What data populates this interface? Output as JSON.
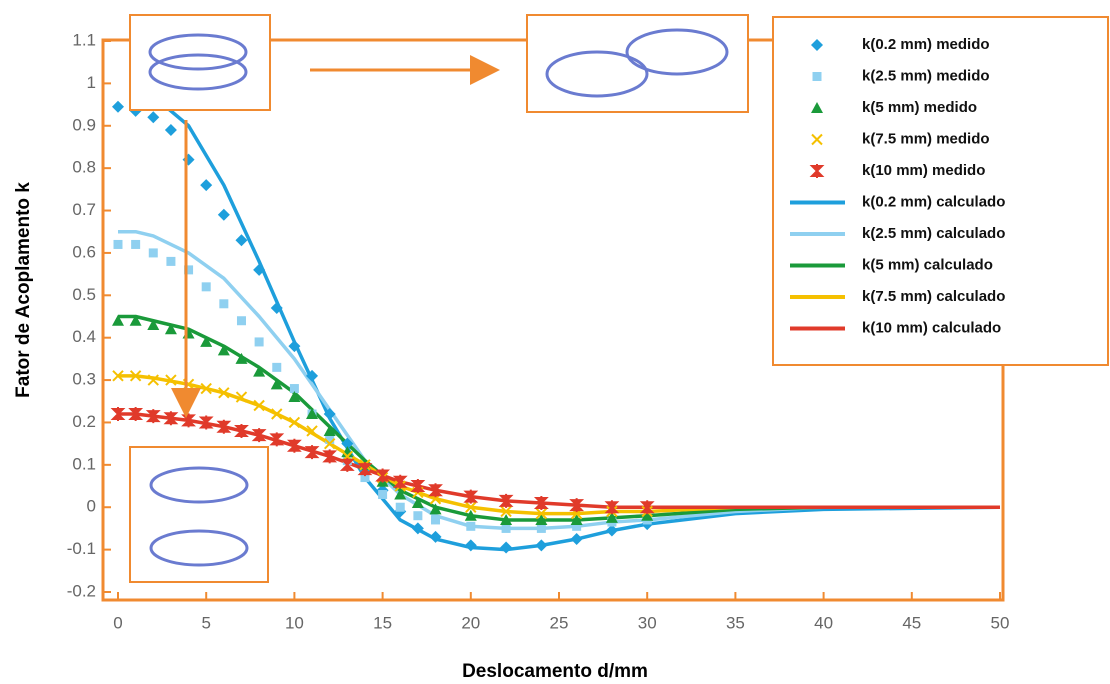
{
  "chart_data": {
    "type": "line",
    "xlabel": "Deslocamento d/mm",
    "ylabel": "Fator de Acoplamento k",
    "xlim": [
      0,
      50
    ],
    "ylim": [
      -0.2,
      1.1
    ],
    "xticks": [
      0,
      5,
      10,
      15,
      20,
      25,
      30,
      35,
      40,
      45,
      50
    ],
    "yticks": [
      1.1,
      1,
      0.9,
      0.8,
      0.7,
      0.6,
      0.5,
      0.4,
      0.3,
      0.2,
      0.1,
      0,
      -0.1,
      -0.2
    ],
    "series": [
      {
        "name": "k(0.2 mm) medido",
        "style": "marker",
        "marker": "diamond",
        "color": "#1e9fdc",
        "x": [
          0,
          1,
          2,
          3,
          4,
          5,
          6,
          7,
          8,
          9,
          10,
          11,
          12,
          13,
          14,
          15,
          16,
          17,
          18,
          20,
          22,
          24,
          26,
          28,
          30
        ],
        "values": [
          0.945,
          0.935,
          0.92,
          0.89,
          0.82,
          0.76,
          0.69,
          0.63,
          0.56,
          0.47,
          0.38,
          0.31,
          0.22,
          0.15,
          0.09,
          0.04,
          -0.01,
          -0.05,
          -0.07,
          -0.09,
          -0.095,
          -0.09,
          -0.075,
          -0.055,
          -0.04
        ]
      },
      {
        "name": "k(2.5 mm) medido",
        "style": "marker",
        "marker": "square",
        "color": "#8fd0f0",
        "x": [
          0,
          1,
          2,
          3,
          4,
          5,
          6,
          7,
          8,
          9,
          10,
          11,
          12,
          13,
          14,
          15,
          16,
          17,
          18,
          20,
          22,
          24,
          26,
          28,
          30
        ],
        "values": [
          0.62,
          0.62,
          0.6,
          0.58,
          0.56,
          0.52,
          0.48,
          0.44,
          0.39,
          0.33,
          0.28,
          0.22,
          0.16,
          0.11,
          0.07,
          0.03,
          0.0,
          -0.02,
          -0.03,
          -0.045,
          -0.05,
          -0.05,
          -0.045,
          -0.035,
          -0.03
        ]
      },
      {
        "name": "k(5 mm) medido",
        "style": "marker",
        "marker": "triangle",
        "color": "#1a9a3a",
        "x": [
          0,
          1,
          2,
          3,
          4,
          5,
          6,
          7,
          8,
          9,
          10,
          11,
          12,
          13,
          14,
          15,
          16,
          17,
          18,
          20,
          22,
          24,
          26,
          28,
          30
        ],
        "values": [
          0.44,
          0.44,
          0.43,
          0.42,
          0.41,
          0.39,
          0.37,
          0.35,
          0.32,
          0.29,
          0.26,
          0.22,
          0.18,
          0.13,
          0.1,
          0.06,
          0.03,
          0.01,
          -0.005,
          -0.02,
          -0.03,
          -0.03,
          -0.03,
          -0.025,
          -0.02
        ]
      },
      {
        "name": "k(7.5 mm) medido",
        "style": "marker",
        "marker": "x",
        "color": "#f5c000",
        "x": [
          0,
          1,
          2,
          3,
          4,
          5,
          6,
          7,
          8,
          9,
          10,
          11,
          12,
          13,
          14,
          15,
          16,
          17,
          18,
          20,
          22,
          24,
          26,
          28,
          30
        ],
        "values": [
          0.31,
          0.31,
          0.3,
          0.3,
          0.29,
          0.28,
          0.27,
          0.26,
          0.24,
          0.22,
          0.2,
          0.18,
          0.15,
          0.12,
          0.1,
          0.07,
          0.05,
          0.035,
          0.02,
          0.0,
          -0.01,
          -0.015,
          -0.015,
          -0.01,
          -0.01
        ]
      },
      {
        "name": "k(10 mm) medido",
        "style": "marker",
        "marker": "star",
        "color": "#e03a2a",
        "x": [
          0,
          1,
          2,
          3,
          4,
          5,
          6,
          7,
          8,
          9,
          10,
          11,
          12,
          13,
          14,
          15,
          16,
          17,
          18,
          20,
          22,
          24,
          26,
          28,
          30
        ],
        "values": [
          0.22,
          0.22,
          0.215,
          0.21,
          0.205,
          0.2,
          0.19,
          0.18,
          0.17,
          0.16,
          0.145,
          0.13,
          0.12,
          0.1,
          0.09,
          0.075,
          0.06,
          0.05,
          0.04,
          0.025,
          0.015,
          0.01,
          0.005,
          0.0,
          0.0
        ]
      },
      {
        "name": "k(0.2 mm) calculado",
        "style": "line",
        "color": "#1e9fdc",
        "x": [
          0,
          1,
          2,
          4,
          6,
          8,
          10,
          12,
          14,
          16,
          18,
          20,
          22,
          24,
          26,
          28,
          30,
          35,
          40,
          50
        ],
        "values": [
          null,
          0.99,
          0.97,
          0.9,
          0.76,
          0.58,
          0.39,
          0.21,
          0.07,
          -0.03,
          -0.075,
          -0.095,
          -0.1,
          -0.09,
          -0.075,
          -0.055,
          -0.04,
          -0.015,
          -0.005,
          0
        ]
      },
      {
        "name": "k(2.5 mm) calculado",
        "style": "line",
        "color": "#8fd0f0",
        "x": [
          0,
          1,
          2,
          4,
          6,
          8,
          10,
          12,
          14,
          16,
          18,
          20,
          22,
          24,
          26,
          28,
          30,
          35,
          40,
          50
        ],
        "values": [
          0.65,
          0.65,
          0.64,
          0.6,
          0.54,
          0.45,
          0.35,
          0.23,
          0.11,
          0.03,
          -0.02,
          -0.045,
          -0.05,
          -0.05,
          -0.045,
          -0.035,
          -0.03,
          -0.01,
          0,
          0
        ]
      },
      {
        "name": "k(5 mm) calculado",
        "style": "line",
        "color": "#1a9a3a",
        "x": [
          0,
          1,
          2,
          4,
          6,
          8,
          10,
          12,
          14,
          16,
          18,
          20,
          22,
          24,
          26,
          28,
          30,
          35,
          40,
          50
        ],
        "values": [
          0.45,
          0.45,
          0.44,
          0.42,
          0.38,
          0.33,
          0.27,
          0.19,
          0.11,
          0.04,
          0.0,
          -0.02,
          -0.03,
          -0.03,
          -0.03,
          -0.025,
          -0.02,
          -0.005,
          0,
          0
        ]
      },
      {
        "name": "k(7.5 mm) calculado",
        "style": "line",
        "color": "#f5c000",
        "x": [
          0,
          1,
          2,
          4,
          6,
          8,
          10,
          12,
          14,
          16,
          18,
          20,
          22,
          24,
          26,
          28,
          30,
          35,
          40,
          50
        ],
        "values": [
          0.31,
          0.31,
          0.305,
          0.29,
          0.27,
          0.24,
          0.2,
          0.15,
          0.1,
          0.05,
          0.02,
          0.0,
          -0.01,
          -0.015,
          -0.015,
          -0.01,
          -0.01,
          0,
          0,
          0
        ]
      },
      {
        "name": "k(10 mm) calculado",
        "style": "line",
        "color": "#e03a2a",
        "x": [
          0,
          1,
          2,
          4,
          6,
          8,
          10,
          12,
          14,
          16,
          18,
          20,
          22,
          24,
          26,
          28,
          30,
          35,
          40,
          50
        ],
        "values": [
          0.22,
          0.22,
          0.215,
          0.205,
          0.19,
          0.17,
          0.145,
          0.12,
          0.09,
          0.06,
          0.04,
          0.025,
          0.015,
          0.01,
          0.005,
          0,
          0,
          0,
          0,
          0
        ]
      }
    ]
  }
}
